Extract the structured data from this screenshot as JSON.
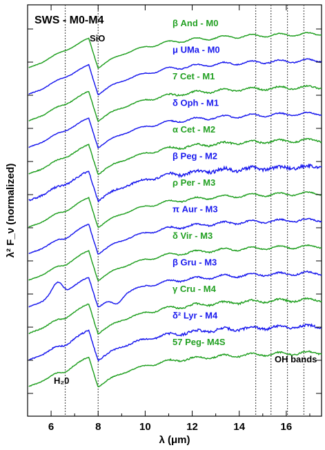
{
  "chart_data": {
    "type": "line",
    "title": "SWS - M0-M4",
    "xlabel": "λ (μm)",
    "ylabel": "λ² F_ν (normalized)",
    "xlim": [
      5.0,
      17.5
    ],
    "x_ticks": [
      6,
      8,
      10,
      12,
      14,
      16
    ],
    "x_tick_labels": [
      "6",
      "8",
      "10",
      "12",
      "14",
      "16"
    ],
    "y_tick_labels_shown": false,
    "annotations": [
      "SiO",
      "H₂0",
      "OH bands"
    ],
    "feature_lines_um": [
      6.6,
      8.0,
      14.7,
      15.35,
      16.05,
      16.75
    ],
    "colors": {
      "green": "#22a022",
      "blue": "#1a1aee"
    },
    "series": [
      {
        "name": "β And - M0",
        "color": "green",
        "noise": 0.2,
        "water": 0.0,
        "bump": 0.0
      },
      {
        "name": "μ UMa - M0",
        "color": "blue",
        "noise": 0.3,
        "water": 0.0,
        "bump": 0.0
      },
      {
        "name": "7 Cet - M1",
        "color": "green",
        "noise": 0.4,
        "water": 0.1,
        "bump": 0.0
      },
      {
        "name": "δ Oph - M1",
        "color": "blue",
        "noise": 0.3,
        "water": 0.1,
        "bump": 0.0
      },
      {
        "name": "α Cet - M2",
        "color": "green",
        "noise": 0.5,
        "water": 0.1,
        "bump": 0.0
      },
      {
        "name": "β Peg - M2",
        "color": "blue",
        "noise": 1.0,
        "water": 0.2,
        "bump": 0.0
      },
      {
        "name": "ρ Per - M3",
        "color": "green",
        "noise": 0.3,
        "water": 0.2,
        "bump": 0.0
      },
      {
        "name": "π Aur - M3",
        "color": "blue",
        "noise": 0.4,
        "water": 0.3,
        "bump": 0.0
      },
      {
        "name": "δ Vir - M3",
        "color": "green",
        "noise": 0.3,
        "water": 0.3,
        "bump": 0.0
      },
      {
        "name": "β Gru - M3",
        "color": "blue",
        "noise": 0.4,
        "water": 0.6,
        "bump": 1.0
      },
      {
        "name": "γ Cru - M4",
        "color": "green",
        "noise": 0.5,
        "water": 0.3,
        "bump": 0.0
      },
      {
        "name": "δ² Lyr - M4",
        "color": "blue",
        "noise": 0.7,
        "water": 0.4,
        "bump": 0.0
      },
      {
        "name": "57 Peg- M4S",
        "color": "green",
        "noise": 0.4,
        "water": 0.4,
        "bump": 0.0
      }
    ]
  }
}
